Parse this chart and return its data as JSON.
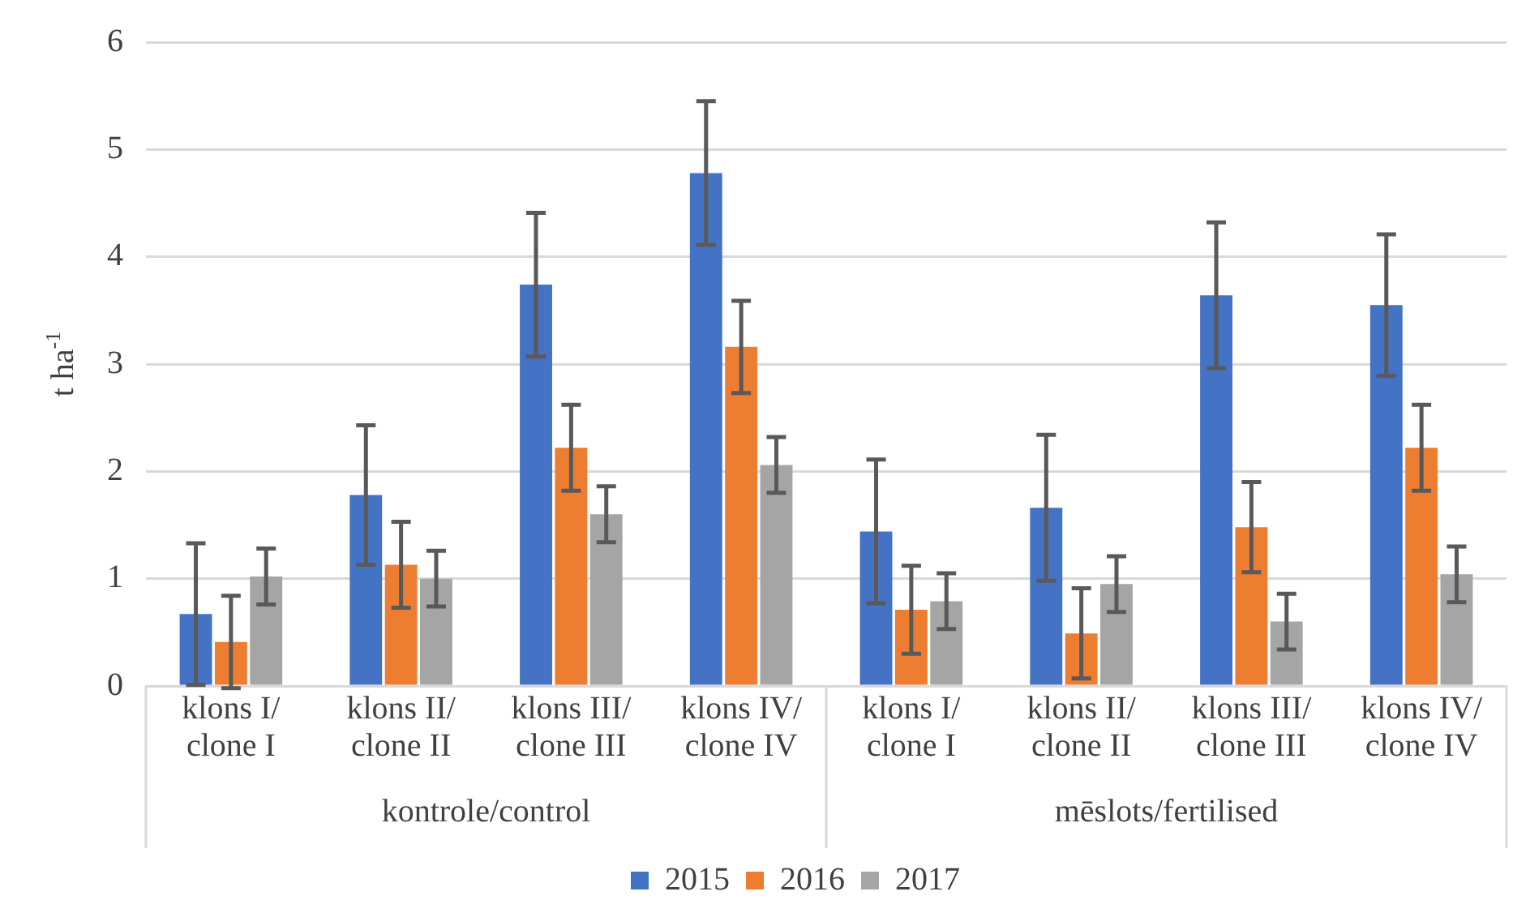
{
  "chart_data": {
    "type": "bar",
    "ylabel": "t ha$^{-1}$",
    "categories": [
      "klons I/clone I",
      "klons II/clone II",
      "klons III/clone III",
      "klons IV/clone IV",
      "klons I/clone I",
      "klons II/clone II",
      "klons III/clone III",
      "klons IV/clone IV"
    ],
    "annotations": [
      "kontrole/control",
      "mēslots/fertilised"
    ],
    "series": [
      {
        "name": "2015",
        "color": "#4472c4",
        "values": [
          0.67,
          1.78,
          3.74,
          4.78,
          1.44,
          1.66,
          3.64,
          3.55
        ],
        "errors": [
          0.66,
          0.65,
          0.67,
          0.67,
          0.67,
          0.68,
          0.68,
          0.66
        ]
      },
      {
        "name": "2016",
        "color": "#ed7d31",
        "values": [
          0.41,
          1.13,
          2.22,
          3.16,
          0.71,
          0.49,
          1.48,
          2.22
        ],
        "errors": [
          0.43,
          0.4,
          0.4,
          0.43,
          0.41,
          0.42,
          0.42,
          0.4
        ]
      },
      {
        "name": "2017",
        "color": "#a5a5a5",
        "values": [
          1.02,
          1.0,
          1.6,
          2.06,
          0.79,
          0.95,
          0.6,
          1.04
        ],
        "errors": [
          0.26,
          0.26,
          0.26,
          0.26,
          0.26,
          0.26,
          0.26,
          0.26
        ]
      }
    ],
    "ylim": [
      0,
      6
    ],
    "yticks": [
      0,
      1,
      2,
      3,
      4,
      5,
      6
    ],
    "grid": "y",
    "legend": "bottom"
  }
}
